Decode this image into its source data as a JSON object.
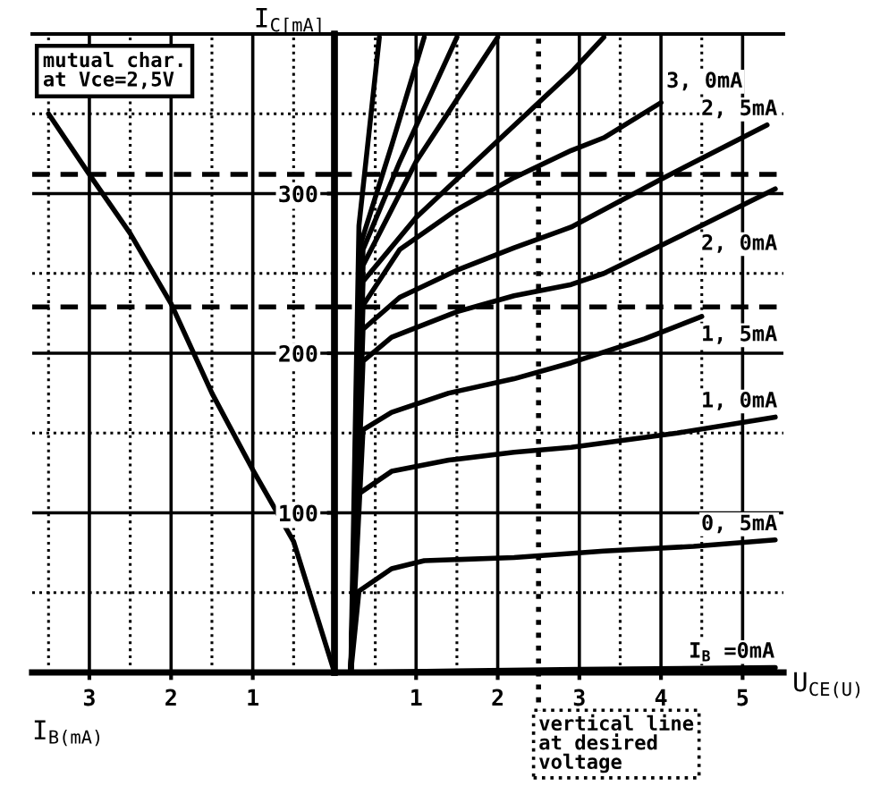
{
  "chart_data": [
    {
      "type": "line",
      "xlabel": "I$_{B(mA)}$",
      "annotations": [
        "mutual char.\nat Vce=2,5V"
      ],
      "series": [
        {
          "color": "#000000",
          "x": [
            0,
            0.5,
            1,
            1.5,
            2,
            2.5,
            3,
            3.5
          ],
          "values": [
            0,
            82,
            127,
            175,
            231,
            275,
            312,
            350
          ]
        }
      ],
      "xlim": [
        3.7,
        0
      ],
      "xticks": [
        {
          "value": 0.5,
          "label": null
        },
        1,
        {
          "value": 1.5,
          "label": null
        },
        2,
        {
          "value": 2.5,
          "label": null
        },
        3,
        {
          "value": 3.5,
          "label": null
        }
      ],
      "ylim": [
        0,
        400
      ],
      "yticks": [
        {
          "value": 50,
          "label": null
        },
        100,
        {
          "value": 150,
          "label": null
        },
        200,
        {
          "value": 250,
          "label": null
        },
        300,
        {
          "value": 350,
          "label": null
        }
      ],
      "tick_labels": "x",
      "grid": true,
      "ref_lines": [
        {
          "axis": "y",
          "value": 312,
          "line_style": "dashed"
        },
        {
          "axis": "y",
          "value": 229,
          "line_style": "dashed"
        }
      ]
    },
    {
      "type": "line",
      "xlabel": "U$_{CE(U)}$",
      "ylabel": "I$_{C[mA]}$",
      "series": [
        {
          "name": "I$_{B}$ =0mA",
          "color": "#000000",
          "x": [
            0.2,
            3,
            5.4
          ],
          "values": [
            0,
            2,
            3
          ]
        },
        {
          "name": "0, 5mA",
          "color": "#000000",
          "x": [
            0.2,
            0.3,
            0.7,
            1.1,
            2.2,
            3.3,
            4.4,
            5.4
          ],
          "values": [
            0,
            51,
            65,
            70,
            72,
            76,
            79,
            83
          ]
        },
        {
          "name": "1, 0mA",
          "color": "#000000",
          "x": [
            0.2,
            0.27,
            0.7,
            1.4,
            2.2,
            2.9,
            4.2,
            5.4
          ],
          "values": [
            0,
            111,
            126,
            133,
            138,
            141,
            150,
            160
          ]
        },
        {
          "name": "1, 5mA",
          "color": "#000000",
          "x": [
            0.2,
            0.35,
            0.7,
            1.4,
            2.2,
            2.9,
            3.8,
            4.5
          ],
          "values": [
            0,
            152,
            163,
            175,
            184,
            194,
            209,
            223
          ]
        },
        {
          "name": "2, 0mA",
          "color": "#000000",
          "x": [
            0.2,
            0.35,
            0.7,
            1.5,
            2.2,
            2.9,
            3.3,
            4.3,
            5.4
          ],
          "values": [
            0,
            195,
            210,
            226,
            236,
            243,
            250,
            275,
            303
          ]
        },
        {
          "name": "2, 5mA",
          "color": "#000000",
          "x": [
            0.2,
            0.35,
            0.8,
            1.5,
            2.2,
            2.9,
            4.0,
            5.3
          ],
          "values": [
            0,
            215,
            235,
            252,
            266,
            279,
            309,
            343
          ]
        },
        {
          "name": "3, 0mA",
          "color": "#000000",
          "x": [
            0.2,
            0.35,
            0.8,
            1.5,
            2.2,
            2.9,
            3.3,
            4.0
          ],
          "values": [
            0,
            230,
            265,
            290,
            310,
            327,
            335,
            357
          ]
        },
        {
          "color": "#000000",
          "x": [
            0.2,
            0.35,
            1.0,
            2.0,
            2.9,
            3.3
          ],
          "values": [
            0,
            245,
            285,
            333,
            376,
            398
          ]
        },
        {
          "color": "#000000",
          "x": [
            0.2,
            0.35,
            1.0,
            2.0
          ],
          "values": [
            0,
            255,
            320,
            398
          ]
        },
        {
          "color": "#000000",
          "x": [
            0.2,
            0.35,
            0.8,
            1.5
          ],
          "values": [
            0,
            265,
            320,
            398
          ]
        },
        {
          "color": "#000000",
          "x": [
            0.2,
            0.33,
            0.7,
            1.1
          ],
          "values": [
            0,
            270,
            330,
            398
          ]
        },
        {
          "color": "#000000",
          "x": [
            0.2,
            0.3,
            0.55
          ],
          "values": [
            0,
            280,
            398
          ]
        }
      ],
      "xlim": [
        0,
        5.5
      ],
      "xticks": [
        {
          "value": 0.5,
          "label": null
        },
        1,
        {
          "value": 1.5,
          "label": null
        },
        2,
        3,
        {
          "value": 3.5,
          "label": null
        },
        4,
        {
          "value": 4.5,
          "label": null
        },
        5
      ],
      "ylim": [
        0,
        400
      ],
      "yticks": [
        {
          "value": 50,
          "label": null
        },
        100,
        {
          "value": 150,
          "label": null
        },
        200,
        {
          "value": 250,
          "label": null
        },
        300,
        {
          "value": 350,
          "label": null
        }
      ],
      "grid": true,
      "ref_lines": [
        {
          "axis": "x",
          "value": 2.5,
          "label": "vertical line\nat desired\nvoltage",
          "line_style": "dotted"
        },
        {
          "axis": "y",
          "value": 312,
          "line_style": "dashed"
        },
        {
          "axis": "y",
          "value": 229,
          "line_style": "dashed"
        }
      ]
    }
  ]
}
